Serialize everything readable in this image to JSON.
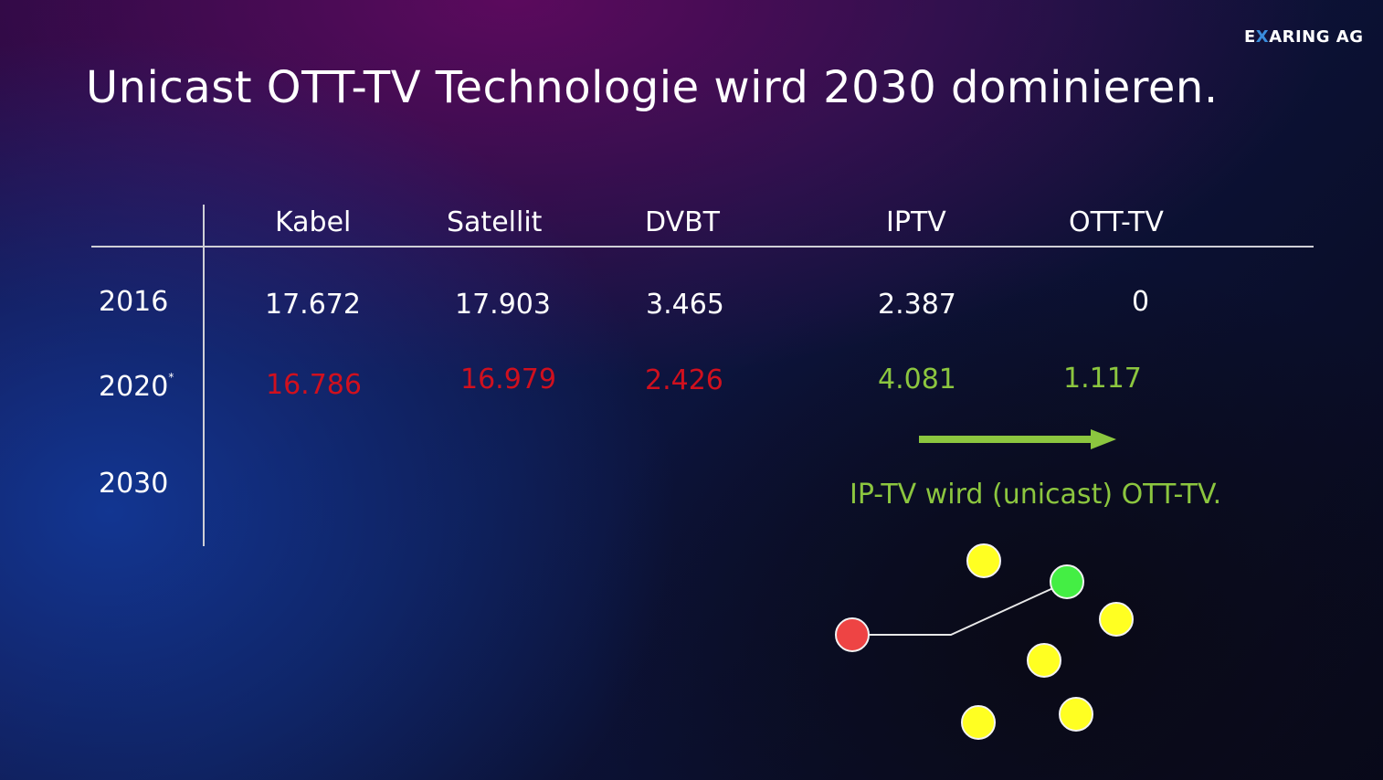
{
  "slide": {
    "logo_prefix": "E",
    "logo_x": "X",
    "logo_suffix": "ARING AG",
    "title": "Unicast OTT-TV Technologie wird 2030 dominieren.",
    "caption": "IP-TV wird (unicast) OTT-TV."
  },
  "table": {
    "columns": [
      "Kabel",
      "Satellit",
      "DVBT",
      "IPTV",
      "OTT-TV"
    ],
    "rows": [
      {
        "year": "2016",
        "footnote_mark": "",
        "values": [
          "17.672",
          "17.903",
          "3.465",
          "2.387",
          "0"
        ]
      },
      {
        "year": "2020",
        "footnote_mark": "*",
        "values": [
          "16.786",
          "16.979",
          "2.426",
          "4.081",
          "1.117"
        ]
      },
      {
        "year": "2030",
        "footnote_mark": "",
        "values": []
      }
    ]
  },
  "colors": {
    "text": "#ffffff",
    "decline": "#d0101e",
    "growth": "#8cc63f",
    "logo_accent": "#3a8dde",
    "node_yellow": "#ffff22",
    "node_green": "#44ee44",
    "node_red": "#ee4444"
  }
}
